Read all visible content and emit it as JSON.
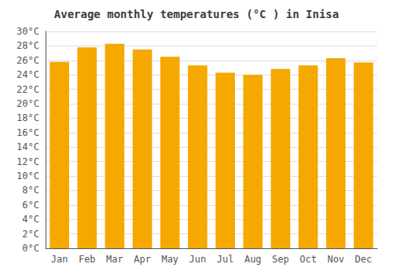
{
  "chart_data": {
    "type": "bar",
    "title": "Average monthly temperatures (°C ) in Inisa",
    "categories": [
      "Jan",
      "Feb",
      "Mar",
      "Apr",
      "May",
      "Jun",
      "Jul",
      "Aug",
      "Sep",
      "Oct",
      "Nov",
      "Dec"
    ],
    "values": [
      25.8,
      27.8,
      28.3,
      27.5,
      26.5,
      25.3,
      24.3,
      24.0,
      24.8,
      25.3,
      26.3,
      25.7
    ],
    "color": "#F5A800",
    "ylim": [
      0,
      30
    ],
    "yticks": [
      {
        "value": 0,
        "label": "0°C"
      },
      {
        "value": 2,
        "label": "2°C"
      },
      {
        "value": 4,
        "label": "4°C"
      },
      {
        "value": 6,
        "label": "6°C"
      },
      {
        "value": 8,
        "label": "8°C"
      },
      {
        "value": 10,
        "label": "10°C"
      },
      {
        "value": 12,
        "label": "12°C"
      },
      {
        "value": 14,
        "label": "14°C"
      },
      {
        "value": 16,
        "label": "16°C"
      },
      {
        "value": 18,
        "label": "18°C"
      },
      {
        "value": 20,
        "label": "20°C"
      },
      {
        "value": 22,
        "label": "22°C"
      },
      {
        "value": 24,
        "label": "24°C"
      },
      {
        "value": 26,
        "label": "26°C"
      },
      {
        "value": 28,
        "label": "28°C"
      },
      {
        "value": 30,
        "label": "30°C"
      }
    ],
    "grid": true
  }
}
